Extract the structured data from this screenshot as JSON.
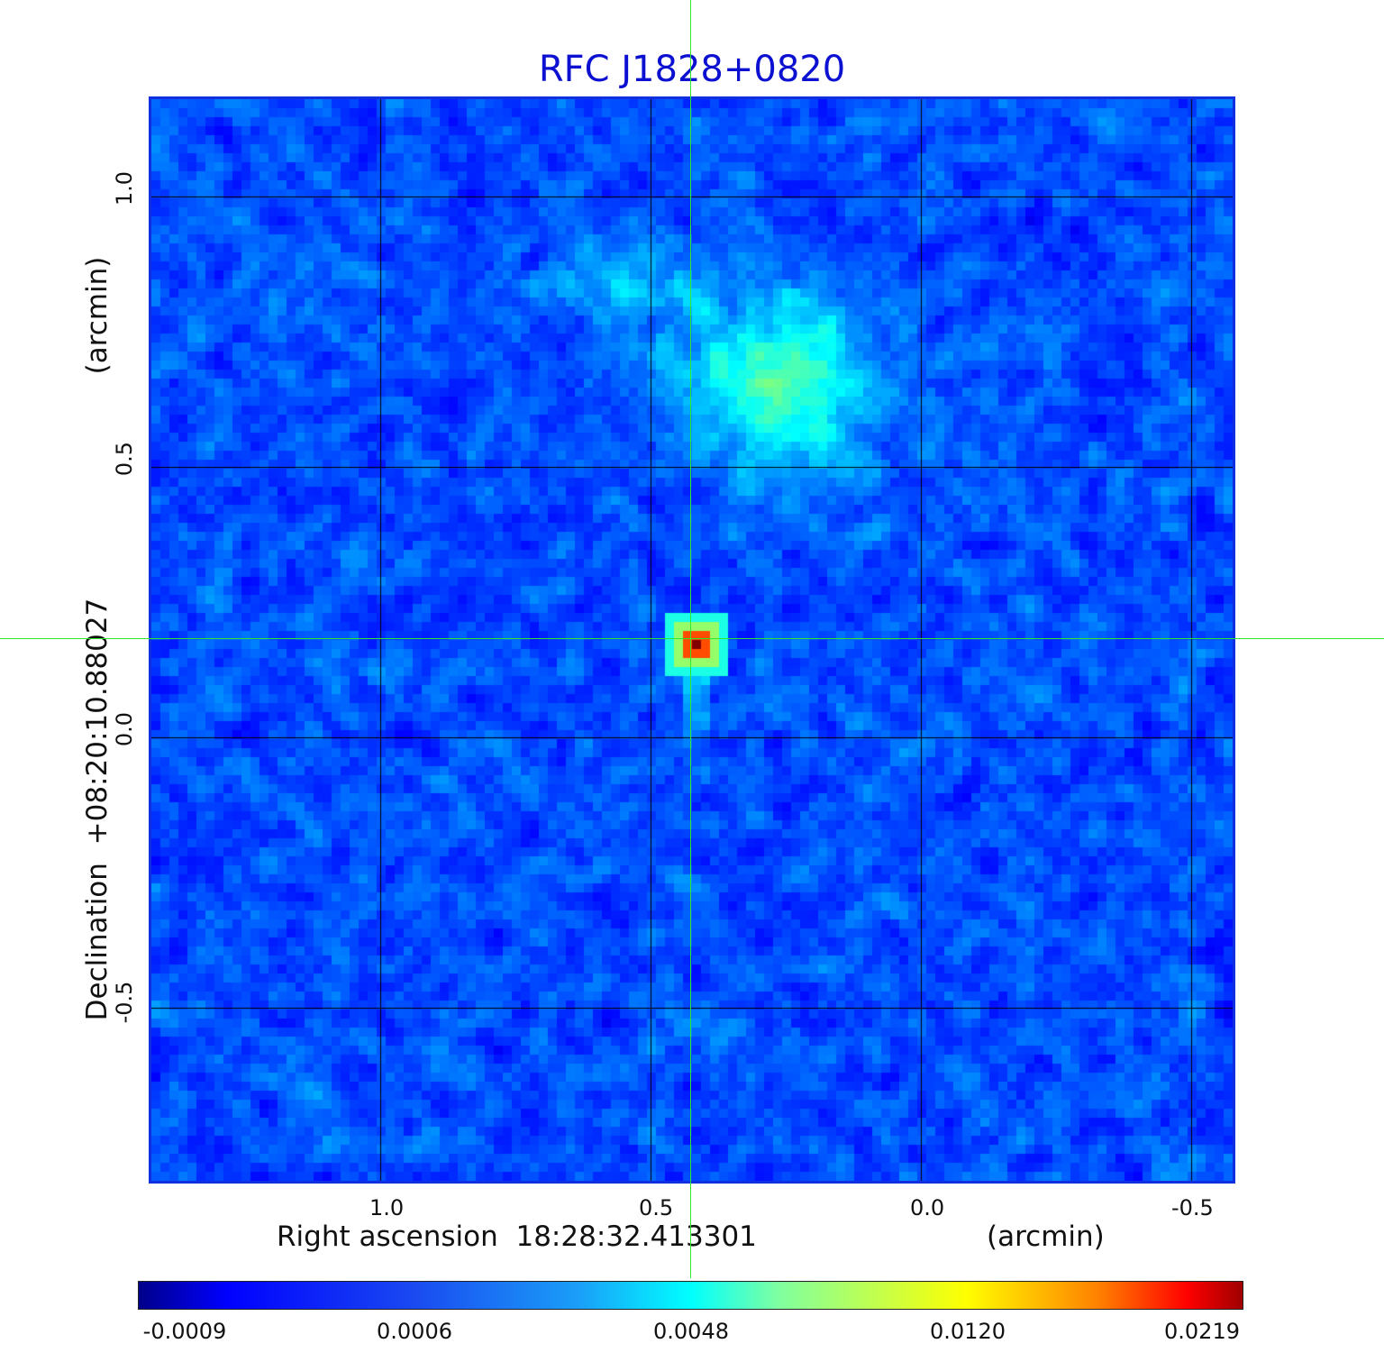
{
  "title": "RFC J1828+0820",
  "x_axis": {
    "label": "Right ascension  18:28:32.413301",
    "unit": "(arcmin)",
    "ticks": [
      "1.0",
      "0.5",
      "0.0",
      "-0.5"
    ]
  },
  "y_axis": {
    "label": "Declination  +08:20:10.88027",
    "unit": "(arcmin)",
    "ticks": [
      "1.0",
      "0.5",
      "0.0",
      "-0.5"
    ]
  },
  "colorbar": {
    "ticks": [
      "-0.0009",
      "0.0006",
      "0.0048",
      "0.0120",
      "0.0219"
    ]
  },
  "colors": {
    "title": "#0c10d0",
    "crosshair": "#2ee82e",
    "frame": "#1030e0"
  }
}
